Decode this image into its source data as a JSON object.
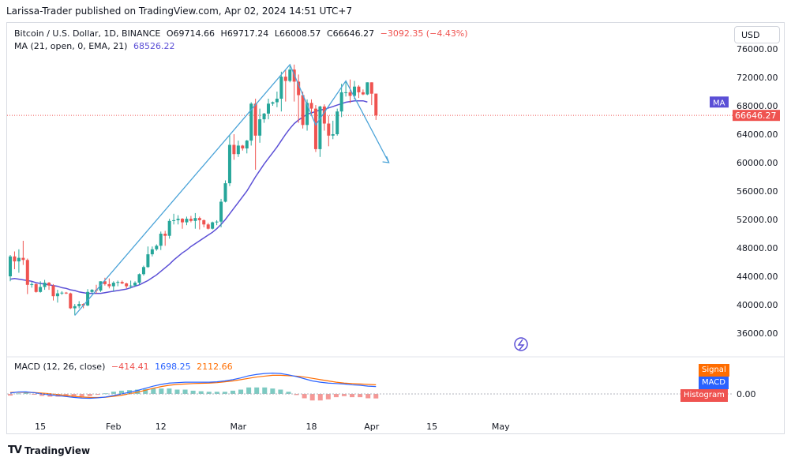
{
  "header": {
    "publisher_line": "Larissa-Trader published on TradingView.com, Apr 02, 2024 14:51 UTC+7"
  },
  "symbol_legend": {
    "name": "Bitcoin / U.S. Dollar, 1D, BINANCE",
    "open": "O69714.66",
    "high": "H69717.24",
    "low": "L66008.57",
    "close": "C66646.27",
    "change": "−3092.35 (−4.43%)"
  },
  "ma_legend": {
    "label": "MA (21, open, 0, EMA, 21)",
    "value": "68526.22"
  },
  "currency_button": "USD",
  "price_axis": {
    "ticks": [
      "76000.00",
      "72000.00",
      "68000.00",
      "64000.00",
      "60000.00",
      "56000.00",
      "52000.00",
      "48000.00",
      "44000.00",
      "40000.00",
      "36000.00"
    ],
    "current_price_label": "66646.27",
    "ma_badge": "MA"
  },
  "macd": {
    "label": "MACD (12, 26, close)",
    "hist_value": "−414.41",
    "macd_value": "1698.25",
    "signal_value": "2112.66",
    "zero_label": "0.00",
    "tags": {
      "signal": "Signal",
      "macd": "MACD",
      "histogram": "Histogram"
    }
  },
  "time_axis": [
    "15",
    "Feb",
    "12",
    "Mar",
    "18",
    "Apr",
    "15",
    "May"
  ],
  "footer": {
    "brand": "TradingView",
    "logo": "TV"
  },
  "colors": {
    "up": "#26a69a",
    "down": "#ef5350",
    "ma": "#5b4fd6",
    "macd": "#2962ff",
    "signal": "#ff6d00",
    "arrow": "#4aa3d8"
  },
  "chart_data": {
    "type": "candlestick",
    "start_date": "2024-01-08",
    "candles": [
      {
        "date": "2024-01-08",
        "o": 44000,
        "h": 47000,
        "l": 43300,
        "c": 46800
      },
      {
        "date": "2024-01-09",
        "o": 46800,
        "h": 47500,
        "l": 45000,
        "c": 46100
      },
      {
        "date": "2024-01-10",
        "o": 46100,
        "h": 47800,
        "l": 44500,
        "c": 46600
      },
      {
        "date": "2024-01-11",
        "o": 46600,
        "h": 49000,
        "l": 45600,
        "c": 46300
      },
      {
        "date": "2024-01-12",
        "o": 46300,
        "h": 46500,
        "l": 41500,
        "c": 42800
      },
      {
        "date": "2024-01-13",
        "o": 42800,
        "h": 43200,
        "l": 42400,
        "c": 42900
      },
      {
        "date": "2024-01-14",
        "o": 42900,
        "h": 43000,
        "l": 41700,
        "c": 41800
      },
      {
        "date": "2024-01-15",
        "o": 41800,
        "h": 43300,
        "l": 41700,
        "c": 42500
      },
      {
        "date": "2024-01-16",
        "o": 42500,
        "h": 43500,
        "l": 42100,
        "c": 43100
      },
      {
        "date": "2024-01-17",
        "o": 43100,
        "h": 43200,
        "l": 42100,
        "c": 42700
      },
      {
        "date": "2024-01-18",
        "o": 42700,
        "h": 42900,
        "l": 40600,
        "c": 41200
      },
      {
        "date": "2024-01-19",
        "o": 41200,
        "h": 42100,
        "l": 40300,
        "c": 41600
      },
      {
        "date": "2024-01-20",
        "o": 41600,
        "h": 41900,
        "l": 41400,
        "c": 41700
      },
      {
        "date": "2024-01-21",
        "o": 41700,
        "h": 41800,
        "l": 41500,
        "c": 41600
      },
      {
        "date": "2024-01-22",
        "o": 41600,
        "h": 41700,
        "l": 39400,
        "c": 39500
      },
      {
        "date": "2024-01-23",
        "o": 39500,
        "h": 40100,
        "l": 38500,
        "c": 39800
      },
      {
        "date": "2024-01-24",
        "o": 39800,
        "h": 40500,
        "l": 39500,
        "c": 40100
      },
      {
        "date": "2024-01-25",
        "o": 40100,
        "h": 40200,
        "l": 39500,
        "c": 39900
      },
      {
        "date": "2024-01-26",
        "o": 39900,
        "h": 42200,
        "l": 39800,
        "c": 41800
      },
      {
        "date": "2024-01-27",
        "o": 41800,
        "h": 42200,
        "l": 41600,
        "c": 42100
      },
      {
        "date": "2024-01-28",
        "o": 42100,
        "h": 42800,
        "l": 41600,
        "c": 42000
      },
      {
        "date": "2024-01-29",
        "o": 42000,
        "h": 43300,
        "l": 41800,
        "c": 43300
      },
      {
        "date": "2024-01-30",
        "o": 43300,
        "h": 43800,
        "l": 42700,
        "c": 42900
      },
      {
        "date": "2024-01-31",
        "o": 42900,
        "h": 43700,
        "l": 42300,
        "c": 42600
      },
      {
        "date": "2024-02-01",
        "o": 42600,
        "h": 43300,
        "l": 41900,
        "c": 43100
      },
      {
        "date": "2024-02-02",
        "o": 43100,
        "h": 43400,
        "l": 42600,
        "c": 43200
      },
      {
        "date": "2024-02-03",
        "o": 43200,
        "h": 43400,
        "l": 42900,
        "c": 43000
      },
      {
        "date": "2024-02-04",
        "o": 43000,
        "h": 43100,
        "l": 42300,
        "c": 42600
      },
      {
        "date": "2024-02-05",
        "o": 42600,
        "h": 43400,
        "l": 42300,
        "c": 42700
      },
      {
        "date": "2024-02-06",
        "o": 42700,
        "h": 43300,
        "l": 42600,
        "c": 43100
      },
      {
        "date": "2024-02-07",
        "o": 43100,
        "h": 44400,
        "l": 42800,
        "c": 44300
      },
      {
        "date": "2024-02-08",
        "o": 44300,
        "h": 45500,
        "l": 44100,
        "c": 45300
      },
      {
        "date": "2024-02-09",
        "o": 45300,
        "h": 48200,
        "l": 45200,
        "c": 47100
      },
      {
        "date": "2024-02-10",
        "o": 47100,
        "h": 48200,
        "l": 46800,
        "c": 47800
      },
      {
        "date": "2024-02-11",
        "o": 47800,
        "h": 48500,
        "l": 47600,
        "c": 48300
      },
      {
        "date": "2024-02-12",
        "o": 48300,
        "h": 50300,
        "l": 47700,
        "c": 50000
      },
      {
        "date": "2024-02-13",
        "o": 50000,
        "h": 50400,
        "l": 48300,
        "c": 49700
      },
      {
        "date": "2024-02-14",
        "o": 49700,
        "h": 52100,
        "l": 49300,
        "c": 51800
      },
      {
        "date": "2024-02-15",
        "o": 51800,
        "h": 52800,
        "l": 51300,
        "c": 51900
      },
      {
        "date": "2024-02-16",
        "o": 51900,
        "h": 52600,
        "l": 51300,
        "c": 52100
      },
      {
        "date": "2024-02-17",
        "o": 52100,
        "h": 52200,
        "l": 50700,
        "c": 51600
      },
      {
        "date": "2024-02-18",
        "o": 51600,
        "h": 52400,
        "l": 51200,
        "c": 52100
      },
      {
        "date": "2024-02-19",
        "o": 52100,
        "h": 52500,
        "l": 51600,
        "c": 51800
      },
      {
        "date": "2024-02-20",
        "o": 51800,
        "h": 52900,
        "l": 50700,
        "c": 52200
      },
      {
        "date": "2024-02-21",
        "o": 52200,
        "h": 52400,
        "l": 50600,
        "c": 51900
      },
      {
        "date": "2024-02-22",
        "o": 51900,
        "h": 52000,
        "l": 50900,
        "c": 51300
      },
      {
        "date": "2024-02-23",
        "o": 51300,
        "h": 51500,
        "l": 50600,
        "c": 50700
      },
      {
        "date": "2024-02-24",
        "o": 50700,
        "h": 51700,
        "l": 50600,
        "c": 51600
      },
      {
        "date": "2024-02-25",
        "o": 51600,
        "h": 51900,
        "l": 51200,
        "c": 51700
      },
      {
        "date": "2024-02-26",
        "o": 51700,
        "h": 54900,
        "l": 50900,
        "c": 54500
      },
      {
        "date": "2024-02-27",
        "o": 54500,
        "h": 57500,
        "l": 54400,
        "c": 57100
      },
      {
        "date": "2024-02-28",
        "o": 57100,
        "h": 63900,
        "l": 56700,
        "c": 62500
      },
      {
        "date": "2024-02-29",
        "o": 62500,
        "h": 64000,
        "l": 60400,
        "c": 61200
      },
      {
        "date": "2024-03-01",
        "o": 61200,
        "h": 63100,
        "l": 60800,
        "c": 62400
      },
      {
        "date": "2024-03-02",
        "o": 62400,
        "h": 62500,
        "l": 61700,
        "c": 62000
      },
      {
        "date": "2024-03-03",
        "o": 62000,
        "h": 63200,
        "l": 61300,
        "c": 63100
      },
      {
        "date": "2024-03-04",
        "o": 63100,
        "h": 68500,
        "l": 62400,
        "c": 68300
      },
      {
        "date": "2024-03-05",
        "o": 68300,
        "h": 69000,
        "l": 59000,
        "c": 63800
      },
      {
        "date": "2024-03-06",
        "o": 63800,
        "h": 67600,
        "l": 62800,
        "c": 66100
      },
      {
        "date": "2024-03-07",
        "o": 66100,
        "h": 67000,
        "l": 65600,
        "c": 66900
      },
      {
        "date": "2024-03-08",
        "o": 66900,
        "h": 69000,
        "l": 66100,
        "c": 68300
      },
      {
        "date": "2024-03-09",
        "o": 68300,
        "h": 68600,
        "l": 68000,
        "c": 68500
      },
      {
        "date": "2024-03-10",
        "o": 68500,
        "h": 70000,
        "l": 67800,
        "c": 69000
      },
      {
        "date": "2024-03-11",
        "o": 69000,
        "h": 72800,
        "l": 67200,
        "c": 72100
      },
      {
        "date": "2024-03-12",
        "o": 72100,
        "h": 73000,
        "l": 68600,
        "c": 71500
      },
      {
        "date": "2024-03-13",
        "o": 71500,
        "h": 73600,
        "l": 71300,
        "c": 73100
      },
      {
        "date": "2024-03-14",
        "o": 73100,
        "h": 73800,
        "l": 68600,
        "c": 71400
      },
      {
        "date": "2024-03-15",
        "o": 71400,
        "h": 72400,
        "l": 65600,
        "c": 69500
      },
      {
        "date": "2024-03-16",
        "o": 69500,
        "h": 70000,
        "l": 64800,
        "c": 65300
      },
      {
        "date": "2024-03-17",
        "o": 65300,
        "h": 68900,
        "l": 64500,
        "c": 68400
      },
      {
        "date": "2024-03-18",
        "o": 68400,
        "h": 68900,
        "l": 66600,
        "c": 67600
      },
      {
        "date": "2024-03-19",
        "o": 67600,
        "h": 68100,
        "l": 61500,
        "c": 61900
      },
      {
        "date": "2024-03-20",
        "o": 61900,
        "h": 68000,
        "l": 60800,
        "c": 67900
      },
      {
        "date": "2024-03-21",
        "o": 67900,
        "h": 68200,
        "l": 64500,
        "c": 65500
      },
      {
        "date": "2024-03-22",
        "o": 65500,
        "h": 66600,
        "l": 62300,
        "c": 63800
      },
      {
        "date": "2024-03-23",
        "o": 63800,
        "h": 65900,
        "l": 63300,
        "c": 64000
      },
      {
        "date": "2024-03-24",
        "o": 64000,
        "h": 67600,
        "l": 63800,
        "c": 67200
      },
      {
        "date": "2024-03-25",
        "o": 67200,
        "h": 71100,
        "l": 66400,
        "c": 69900
      },
      {
        "date": "2024-03-26",
        "o": 69900,
        "h": 71500,
        "l": 69300,
        "c": 69900
      },
      {
        "date": "2024-03-27",
        "o": 69900,
        "h": 71700,
        "l": 68400,
        "c": 69400
      },
      {
        "date": "2024-03-28",
        "o": 69400,
        "h": 71500,
        "l": 68900,
        "c": 70700
      },
      {
        "date": "2024-03-29",
        "o": 70700,
        "h": 70900,
        "l": 69100,
        "c": 69900
      },
      {
        "date": "2024-03-30",
        "o": 69900,
        "h": 70300,
        "l": 69500,
        "c": 69600
      },
      {
        "date": "2024-03-31",
        "o": 69600,
        "h": 71300,
        "l": 69500,
        "c": 71300
      },
      {
        "date": "2024-04-01",
        "o": 71300,
        "h": 71300,
        "l": 68100,
        "c": 69700
      },
      {
        "date": "2024-04-02",
        "o": 69714.66,
        "h": 69717.24,
        "l": 66008.57,
        "c": 66646.27
      }
    ],
    "ma21": [
      43600,
      43700,
      43600,
      43500,
      43400,
      43300,
      43100,
      43000,
      42900,
      42800,
      42700,
      42600,
      42400,
      42300,
      42100,
      42000,
      41800,
      41700,
      41600,
      41600,
      41600,
      41600,
      41700,
      41800,
      41900,
      42000,
      42100,
      42200,
      42400,
      42600,
      42800,
      43100,
      43400,
      43800,
      44200,
      44700,
      45200,
      45700,
      46300,
      46800,
      47300,
      47700,
      48200,
      48600,
      49000,
      49400,
      49800,
      50200,
      50700,
      51300,
      52000,
      52800,
      53600,
      54400,
      55200,
      56000,
      57000,
      58000,
      58900,
      59800,
      60600,
      61400,
      62200,
      63100,
      64000,
      64800,
      65500,
      66000,
      66400,
      66800,
      67000,
      67200,
      67400,
      67500,
      67700,
      67900,
      68100,
      68300,
      68500,
      68600,
      68700,
      68700,
      68700,
      68526.22
    ],
    "projection_arrow": [
      {
        "date": "2024-01-23",
        "price": 38500
      },
      {
        "date": "2024-02-28",
        "price": 63900
      },
      {
        "date": "2024-03-13",
        "price": 73800
      },
      {
        "date": "2024-03-19",
        "price": 65300
      },
      {
        "date": "2024-03-26",
        "price": 71500
      },
      {
        "date": "2024-04-05",
        "price": 60000
      }
    ],
    "macd_series": {
      "macd_line": [
        200,
        450,
        480,
        280,
        0,
        -200,
        -400,
        -600,
        -800,
        -950,
        -1000,
        -900,
        -700,
        -350,
        0,
        400,
        800,
        1300,
        1800,
        2200,
        2500,
        2600,
        2700,
        2700,
        2700,
        2700,
        2800,
        3000,
        3300,
        3700,
        4200,
        4500,
        4700,
        4800,
        4700,
        4400,
        4000,
        3500,
        3000,
        2700,
        2500,
        2400,
        2300,
        2100,
        2000,
        1800,
        1698.25
      ],
      "signal_line": [
        350,
        400,
        380,
        320,
        180,
        50,
        -150,
        -350,
        -550,
        -700,
        -800,
        -820,
        -760,
        -560,
        -300,
        50,
        400,
        850,
        1300,
        1700,
        2000,
        2200,
        2300,
        2400,
        2450,
        2500,
        2600,
        2800,
        3000,
        3300,
        3600,
        3900,
        4100,
        4300,
        4300,
        4200,
        4100,
        3900,
        3600,
        3300,
        3000,
        2700,
        2500,
        2400,
        2300,
        2200,
        2112.66
      ],
      "histogram_last": -414.41
    }
  }
}
